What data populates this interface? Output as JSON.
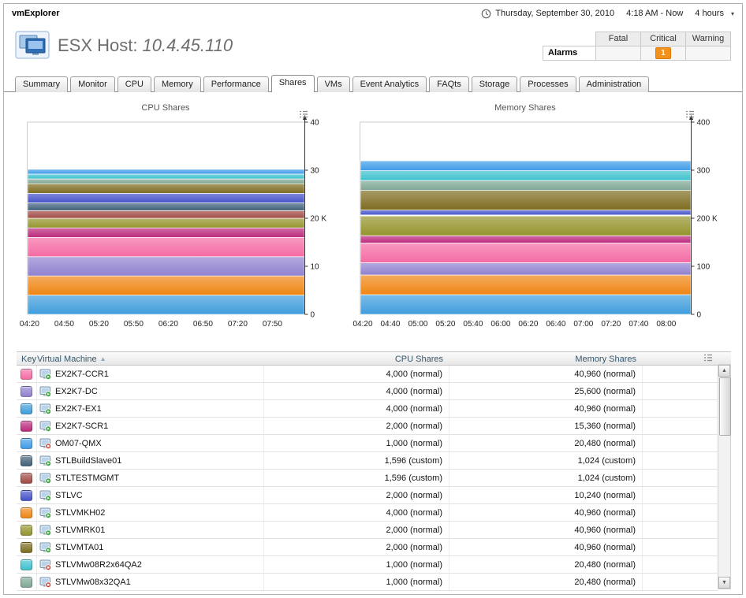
{
  "app": {
    "title": "vmExplorer"
  },
  "timebar": {
    "date": "Thursday, September 30, 2010",
    "range": "4:18 AM - Now",
    "duration": "4 hours"
  },
  "header": {
    "title_prefix": "ESX Host:",
    "title_value": "10.4.45.110",
    "alarms": {
      "row_label": "Alarms",
      "columns": [
        "Fatal",
        "Critical",
        "Warning"
      ],
      "counts": {
        "fatal": "",
        "critical": "1",
        "warning": ""
      },
      "critical_badge_color": "#f4911d"
    }
  },
  "tabs": {
    "items": [
      "Summary",
      "Monitor",
      "CPU",
      "Memory",
      "Performance",
      "Shares",
      "VMs",
      "Event Analytics",
      "FAQts",
      "Storage",
      "Processes",
      "Administration"
    ],
    "active": "Shares"
  },
  "chart_data": [
    {
      "type": "area",
      "stacked": true,
      "title": "CPU Shares",
      "ylim": [
        0,
        40000
      ],
      "y_unit": "K",
      "y_ticks": [
        {
          "value": 0,
          "label": "0"
        },
        {
          "value": 10000,
          "label": "10"
        },
        {
          "value": 20000,
          "label": "20 K"
        },
        {
          "value": 30000,
          "label": "30"
        },
        {
          "value": 40000,
          "label": "40"
        }
      ],
      "x_ticks": [
        "04:20",
        "04:50",
        "05:20",
        "05:50",
        "06:20",
        "06:50",
        "07:20",
        "07:50"
      ],
      "x_start_frac": 0.0083,
      "x_step_frac": 0.125,
      "legend_position": "none",
      "grid": false,
      "series": [
        {
          "name": "EX2K7-EX1",
          "value": 4000,
          "color": "#3f9ddc"
        },
        {
          "name": "STLVMKH02",
          "value": 4000,
          "color": "#ef8513"
        },
        {
          "name": "EX2K7-DC",
          "value": 4000,
          "color": "#9181cf"
        },
        {
          "name": "EX2K7-CCR1",
          "value": 4000,
          "color": "#f46ba4"
        },
        {
          "name": "EX2K7-SCR1",
          "value": 2000,
          "color": "#bc2a7d"
        },
        {
          "name": "STLVMRK01",
          "value": 2000,
          "color": "#94942c"
        },
        {
          "name": "STLTESTMGMT",
          "value": 1596,
          "color": "#a14a45"
        },
        {
          "name": "STLBuildSlave01",
          "value": 1596,
          "color": "#40607a"
        },
        {
          "name": "STLVC",
          "value": 2000,
          "color": "#4553c9"
        },
        {
          "name": "STLVMTA01",
          "value": 2000,
          "color": "#7d6c1f"
        },
        {
          "name": "STLVMw08x32QA1",
          "value": 1000,
          "color": "#7fa795"
        },
        {
          "name": "STLVMw08R2x64QA2",
          "value": 1000,
          "color": "#3ec1cd"
        },
        {
          "name": "OM07-QMX",
          "value": 1000,
          "color": "#3f9ce8"
        }
      ]
    },
    {
      "type": "area",
      "stacked": true,
      "title": "Memory Shares",
      "ylim": [
        0,
        400000
      ],
      "y_unit": "K",
      "y_ticks": [
        {
          "value": 0,
          "label": "0"
        },
        {
          "value": 100000,
          "label": "100"
        },
        {
          "value": 200000,
          "label": "200 K"
        },
        {
          "value": 300000,
          "label": "300"
        },
        {
          "value": 400000,
          "label": "400"
        }
      ],
      "x_ticks": [
        "04:20",
        "04:40",
        "05:00",
        "05:20",
        "05:40",
        "06:00",
        "06:20",
        "06:40",
        "07:00",
        "07:20",
        "07:40",
        "08:00"
      ],
      "x_start_frac": 0.0083,
      "x_step_frac": 0.0833,
      "legend_position": "none",
      "grid": false,
      "series": [
        {
          "name": "EX2K7-EX1",
          "value": 40960,
          "color": "#3f9ddc"
        },
        {
          "name": "STLVMKH02",
          "value": 40960,
          "color": "#ef8513"
        },
        {
          "name": "EX2K7-DC",
          "value": 25600,
          "color": "#9181cf"
        },
        {
          "name": "EX2K7-CCR1",
          "value": 40960,
          "color": "#f46ba4"
        },
        {
          "name": "EX2K7-SCR1",
          "value": 15360,
          "color": "#bc2a7d"
        },
        {
          "name": "STLVMRK01",
          "value": 40960,
          "color": "#94942c"
        },
        {
          "name": "STLTESTMGMT",
          "value": 1024,
          "color": "#a14a45"
        },
        {
          "name": "STLBuildSlave01",
          "value": 1024,
          "color": "#40607a"
        },
        {
          "name": "STLVC",
          "value": 10240,
          "color": "#4553c9"
        },
        {
          "name": "STLVMTA01",
          "value": 40960,
          "color": "#7d6c1f"
        },
        {
          "name": "STLVMw08x32QA1",
          "value": 20480,
          "color": "#7fa795"
        },
        {
          "name": "STLVMw08R2x64QA2",
          "value": 20480,
          "color": "#3ec1cd"
        },
        {
          "name": "OM07-QMX",
          "value": 20480,
          "color": "#3f9ce8"
        }
      ]
    }
  ],
  "table": {
    "columns": {
      "key": "Key",
      "vm": "Virtual Machine",
      "cpu": "CPU Shares",
      "memory": "Memory Shares"
    },
    "sort": {
      "column": "Virtual Machine",
      "direction": "asc"
    },
    "rows": [
      {
        "color": "#f46ba4",
        "name": "EX2K7-CCR1",
        "status": "running",
        "cpu": "4,000 (normal)",
        "memory": "40,960 (normal)"
      },
      {
        "color": "#9181cf",
        "name": "EX2K7-DC",
        "status": "running",
        "cpu": "4,000 (normal)",
        "memory": "25,600 (normal)"
      },
      {
        "color": "#3f9ddc",
        "name": "EX2K7-EX1",
        "status": "running",
        "cpu": "4,000 (normal)",
        "memory": "40,960 (normal)"
      },
      {
        "color": "#bc2a7d",
        "name": "EX2K7-SCR1",
        "status": "running",
        "cpu": "2,000 (normal)",
        "memory": "15,360 (normal)"
      },
      {
        "color": "#3f9ce8",
        "name": "OM07-QMX",
        "status": "stopped",
        "cpu": "1,000 (normal)",
        "memory": "20,480 (normal)"
      },
      {
        "color": "#40607a",
        "name": "STLBuildSlave01",
        "status": "running",
        "cpu": "1,596 (custom)",
        "memory": "1,024 (custom)"
      },
      {
        "color": "#a14a45",
        "name": "STLTESTMGMT",
        "status": "running",
        "cpu": "1,596 (custom)",
        "memory": "1,024 (custom)"
      },
      {
        "color": "#4553c9",
        "name": "STLVC",
        "status": "running",
        "cpu": "2,000 (normal)",
        "memory": "10,240 (normal)"
      },
      {
        "color": "#ef8513",
        "name": "STLVMKH02",
        "status": "running",
        "cpu": "4,000 (normal)",
        "memory": "40,960 (normal)"
      },
      {
        "color": "#94942c",
        "name": "STLVMRK01",
        "status": "running",
        "cpu": "2,000 (normal)",
        "memory": "40,960 (normal)"
      },
      {
        "color": "#7d6c1f",
        "name": "STLVMTA01",
        "status": "running",
        "cpu": "2,000 (normal)",
        "memory": "40,960 (normal)"
      },
      {
        "color": "#3ec1cd",
        "name": "STLVMw08R2x64QA2",
        "status": "stopped",
        "cpu": "1,000 (normal)",
        "memory": "20,480 (normal)"
      },
      {
        "color": "#7fa795",
        "name": "STLVMw08x32QA1",
        "status": "stopped",
        "cpu": "1,000 (normal)",
        "memory": "20,480 (normal)"
      }
    ]
  }
}
